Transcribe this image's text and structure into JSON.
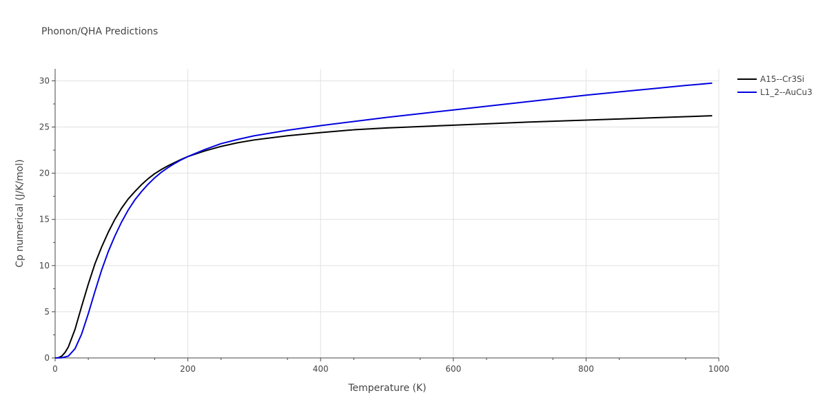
{
  "chart_data": {
    "type": "line",
    "title": "Phonon/QHA Predictions",
    "xlabel": "Temperature (K)",
    "ylabel": "Cp numerical (J/K/mol)",
    "xlim": [
      0,
      1000
    ],
    "ylim": [
      0,
      31.3
    ],
    "xticks": [
      0,
      200,
      400,
      600,
      800,
      1000
    ],
    "yticks": [
      0,
      5,
      10,
      15,
      20,
      25,
      30
    ],
    "grid": true,
    "legend_position": "top-right",
    "series": [
      {
        "name": "A15--Cr3Si",
        "color": "#000000",
        "points": [
          [
            0,
            0
          ],
          [
            5,
            0.02
          ],
          [
            10,
            0.2
          ],
          [
            15,
            0.6
          ],
          [
            20,
            1.2
          ],
          [
            30,
            3.1
          ],
          [
            40,
            5.6
          ],
          [
            50,
            8.0
          ],
          [
            60,
            10.2
          ],
          [
            70,
            12.0
          ],
          [
            80,
            13.6
          ],
          [
            90,
            15.0
          ],
          [
            100,
            16.2
          ],
          [
            110,
            17.2
          ],
          [
            120,
            18.0
          ],
          [
            130,
            18.75
          ],
          [
            140,
            19.4
          ],
          [
            150,
            19.95
          ],
          [
            160,
            20.4
          ],
          [
            170,
            20.8
          ],
          [
            180,
            21.15
          ],
          [
            190,
            21.5
          ],
          [
            200,
            21.8
          ],
          [
            225,
            22.4
          ],
          [
            250,
            22.9
          ],
          [
            275,
            23.3
          ],
          [
            300,
            23.6
          ],
          [
            350,
            24.05
          ],
          [
            400,
            24.4
          ],
          [
            450,
            24.7
          ],
          [
            500,
            24.9
          ],
          [
            550,
            25.05
          ],
          [
            600,
            25.2
          ],
          [
            650,
            25.35
          ],
          [
            700,
            25.5
          ],
          [
            750,
            25.63
          ],
          [
            800,
            25.75
          ],
          [
            850,
            25.87
          ],
          [
            900,
            26.0
          ],
          [
            950,
            26.12
          ],
          [
            990,
            26.22
          ]
        ]
      },
      {
        "name": "L1_2--AuCu3",
        "color": "#0000e0",
        "points": [
          [
            0,
            0
          ],
          [
            10,
            0.02
          ],
          [
            20,
            0.2
          ],
          [
            30,
            1.0
          ],
          [
            40,
            2.6
          ],
          [
            50,
            4.8
          ],
          [
            60,
            7.2
          ],
          [
            70,
            9.5
          ],
          [
            80,
            11.5
          ],
          [
            90,
            13.2
          ],
          [
            100,
            14.7
          ],
          [
            110,
            16.0
          ],
          [
            120,
            17.1
          ],
          [
            130,
            18.0
          ],
          [
            140,
            18.8
          ],
          [
            150,
            19.5
          ],
          [
            160,
            20.1
          ],
          [
            170,
            20.6
          ],
          [
            180,
            21.05
          ],
          [
            190,
            21.45
          ],
          [
            200,
            21.8
          ],
          [
            225,
            22.55
          ],
          [
            250,
            23.2
          ],
          [
            275,
            23.65
          ],
          [
            300,
            24.05
          ],
          [
            350,
            24.65
          ],
          [
            400,
            25.15
          ],
          [
            450,
            25.6
          ],
          [
            500,
            26.05
          ],
          [
            550,
            26.45
          ],
          [
            600,
            26.85
          ],
          [
            650,
            27.25
          ],
          [
            700,
            27.65
          ],
          [
            750,
            28.05
          ],
          [
            800,
            28.45
          ],
          [
            850,
            28.8
          ],
          [
            900,
            29.15
          ],
          [
            950,
            29.5
          ],
          [
            990,
            29.75
          ]
        ]
      }
    ]
  }
}
